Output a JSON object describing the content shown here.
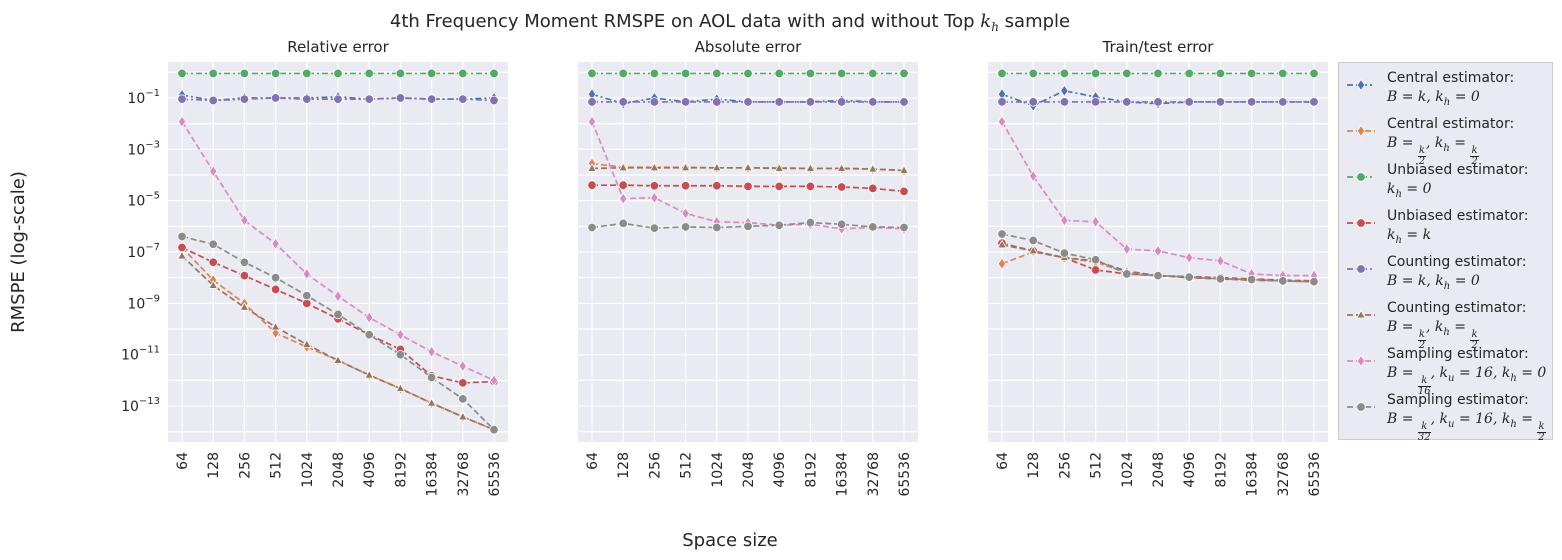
{
  "figure": {
    "suptitle": "4th Frequency Moment RMSPE on AOL data with and without Top k_h sample",
    "suptitle_prefix": "4th Frequency Moment RMSPE on AOL data with and without Top ",
    "suptitle_math_base": "k",
    "suptitle_math_sub": "h",
    "suptitle_suffix": " sample",
    "ylabel": "RMSPE (log-scale)",
    "xlabel": "Space size"
  },
  "legend": {
    "position": "right-outside",
    "entries": [
      {
        "line1": "Central estimator:",
        "line2": "B = k, k_h = 0",
        "color": "#4c72b0",
        "marker": "diamond",
        "dash": "6,3,2,3"
      },
      {
        "line1": "Central estimator:",
        "line2": "B = k/2, k_h = k/2",
        "color": "#dd8452",
        "marker": "diamond",
        "dash": "6,3"
      },
      {
        "line1": "Unbiased estimator:",
        "line2": "k_h = 0",
        "color": "#55a868",
        "marker": "circle",
        "dash": "6,3,2,3"
      },
      {
        "line1": "Unbiased estimator:",
        "line2": "k_h = k",
        "color": "#c44e52",
        "marker": "circle",
        "dash": "6,3"
      },
      {
        "line1": "Counting estimator:",
        "line2": "B = k, k_h = 0",
        "color": "#8172b3",
        "marker": "circle",
        "dash": "6,3,2,3"
      },
      {
        "line1": "Counting estimator:",
        "line2": "B = k/2, k_h = k/2",
        "color": "#937860",
        "marker": "triangle",
        "dash": "6,3"
      },
      {
        "line1": "Sampling estimator:",
        "line2": "B = k/16, k_u = 16, k_h = 0",
        "color": "#da8bc3",
        "marker": "diamond",
        "dash": "6,3"
      },
      {
        "line1": "Sampling estimator:",
        "line2": "B = k/32, k_u = 16, k_h = k/2",
        "color": "#8c8c8c",
        "marker": "circle",
        "dash": "6,3"
      }
    ]
  },
  "chart_data": [
    {
      "type": "line",
      "title": "Relative error",
      "yscale": "log",
      "ylim": [
        1e-14,
        1
      ],
      "yticks": [
        "10^-1",
        "10^-3",
        "10^-5",
        "10^-7",
        "10^-9",
        "10^-11",
        "10^-13"
      ],
      "grid": true,
      "categories": [
        "64",
        "128",
        "256",
        "512",
        "1024",
        "2048",
        "4096",
        "8192",
        "16384",
        "32768",
        "65536"
      ],
      "series": [
        {
          "name": "Central estimator: B = k, k_h = 0",
          "values": [
            0.13,
            0.08,
            0.1,
            0.1,
            0.1,
            0.11,
            0.09,
            0.1,
            0.09,
            0.09,
            0.1
          ]
        },
        {
          "name": "Central estimator: B = k/2, k_h = k/2",
          "values": [
            1.5e-07,
            8e-09,
            1e-09,
            7e-11,
            2e-11,
            6e-12,
            1.6e-12,
            4.8e-13,
            1.3e-13,
            3.8e-14,
            1.2e-14
          ]
        },
        {
          "name": "Unbiased estimator: k_h = 0",
          "values": [
            0.9,
            0.9,
            0.9,
            0.9,
            0.9,
            0.9,
            0.9,
            0.9,
            0.9,
            0.9,
            0.9
          ]
        },
        {
          "name": "Unbiased estimator: k_h = k",
          "values": [
            1.5e-07,
            4e-08,
            1.2e-08,
            3.5e-09,
            1e-09,
            2.5e-10,
            6e-11,
            1.6e-11,
            1.5e-12,
            8e-13,
            9e-13
          ]
        },
        {
          "name": "Counting estimator: B = k, k_h = 0",
          "values": [
            0.09,
            0.08,
            0.09,
            0.1,
            0.09,
            0.09,
            0.09,
            0.1,
            0.09,
            0.09,
            0.08
          ]
        },
        {
          "name": "Counting estimator: B = k/2, k_h = k/2",
          "values": [
            7e-08,
            5e-09,
            7e-10,
            1.2e-10,
            2.5e-11,
            6e-12,
            1.6e-12,
            4.8e-13,
            1.3e-13,
            3.8e-14,
            1.2e-14
          ]
        },
        {
          "name": "Sampling estimator: B = k/16, k_u = 16, k_h = 0",
          "values": [
            0.012,
            0.00014,
            1.7e-06,
            2.1e-07,
            1.4e-08,
            1.9e-09,
            2.8e-10,
            6e-11,
            1.3e-11,
            3.6e-12,
            1e-12
          ]
        },
        {
          "name": "Sampling estimator: B = k/32, k_u = 16, k_h = k/2",
          "values": [
            4e-07,
            2e-07,
            4e-08,
            1e-08,
            2e-09,
            3.7e-10,
            6e-11,
            1e-11,
            1.3e-12,
            1.9e-13,
            1.2e-14
          ]
        }
      ]
    },
    {
      "type": "line",
      "title": "Absolute error",
      "yscale": "log",
      "ylim": [
        1e-14,
        1
      ],
      "grid": true,
      "categories": [
        "64",
        "128",
        "256",
        "512",
        "1024",
        "2048",
        "4096",
        "8192",
        "16384",
        "32768",
        "65536"
      ],
      "series": [
        {
          "name": "Central estimator: B = k, k_h = 0",
          "values": [
            0.14,
            0.06,
            0.1,
            0.07,
            0.09,
            0.07,
            0.07,
            0.07,
            0.08,
            0.07,
            0.07
          ]
        },
        {
          "name": "Central estimator: B = k/2, k_h = k/2",
          "values": [
            0.00028,
            0.0002,
            0.0002,
            0.0002,
            0.00019,
            0.00019,
            0.00019,
            0.00018,
            0.00018,
            0.00017,
            0.00015
          ]
        },
        {
          "name": "Unbiased estimator: k_h = 0",
          "values": [
            0.9,
            0.9,
            0.9,
            0.9,
            0.9,
            0.9,
            0.9,
            0.9,
            0.9,
            0.9,
            0.9
          ]
        },
        {
          "name": "Unbiased estimator: k_h = k",
          "values": [
            4e-05,
            4e-05,
            3.8e-05,
            3.8e-05,
            3.8e-05,
            3.6e-05,
            3.6e-05,
            3.6e-05,
            3.4e-05,
            3e-05,
            2.3e-05
          ]
        },
        {
          "name": "Counting estimator: B = k, k_h = 0",
          "values": [
            0.07,
            0.07,
            0.07,
            0.07,
            0.07,
            0.07,
            0.07,
            0.07,
            0.07,
            0.07,
            0.07
          ]
        },
        {
          "name": "Counting estimator: B = k/2, k_h = k/2",
          "values": [
            0.00018,
            0.00019,
            0.00019,
            0.00019,
            0.00019,
            0.00019,
            0.00018,
            0.00018,
            0.00018,
            0.00017,
            0.00015
          ]
        },
        {
          "name": "Sampling estimator: B = k/16, k_u = 16, k_h = 0",
          "values": [
            0.012,
            1.2e-05,
            1.3e-05,
            3.2e-06,
            1.5e-06,
            1.4e-06,
            1.1e-06,
            1.2e-06,
            8e-07,
            9e-07,
            8e-07
          ]
        },
        {
          "name": "Sampling estimator: B = k/32, k_u = 16, k_h = k/2",
          "values": [
            9e-07,
            1.3e-06,
            8.5e-07,
            9.5e-07,
            9e-07,
            1e-06,
            1.1e-06,
            1.4e-06,
            1.2e-06,
            9.5e-07,
            9e-07
          ]
        }
      ]
    },
    {
      "type": "line",
      "title": "Train/test error",
      "yscale": "log",
      "ylim": [
        1e-14,
        1
      ],
      "grid": true,
      "categories": [
        "64",
        "128",
        "256",
        "512",
        "1024",
        "2048",
        "4096",
        "8192",
        "16384",
        "32768",
        "65536"
      ],
      "series": [
        {
          "name": "Central estimator: B = k, k_h = 0",
          "values": [
            0.14,
            0.05,
            0.19,
            0.11,
            0.07,
            0.06,
            0.07,
            0.07,
            0.07,
            0.07,
            0.07
          ]
        },
        {
          "name": "Central estimator: B = k/2, k_h = k/2",
          "values": [
            3.5e-08,
            1e-07,
            6e-08,
            4e-08,
            1.6e-08,
            1.2e-08,
            1e-08,
            9e-09,
            8e-09,
            7.5e-09,
            7e-09
          ]
        },
        {
          "name": "Unbiased estimator: k_h = 0",
          "values": [
            0.9,
            0.9,
            0.9,
            0.9,
            0.9,
            0.9,
            0.9,
            0.9,
            0.9,
            0.9,
            0.9
          ]
        },
        {
          "name": "Unbiased estimator: k_h = k",
          "values": [
            2.2e-07,
            1.1e-07,
            6e-08,
            2e-08,
            1.4e-08,
            1.2e-08,
            1.1e-08,
            1e-08,
            9e-09,
            8e-09,
            7.5e-09
          ]
        },
        {
          "name": "Counting estimator: B = k, k_h = 0",
          "values": [
            0.07,
            0.07,
            0.07,
            0.07,
            0.07,
            0.07,
            0.07,
            0.07,
            0.07,
            0.07,
            0.07
          ]
        },
        {
          "name": "Counting estimator: B = k/2, k_h = k/2",
          "values": [
            1.9e-07,
            1.1e-07,
            6e-08,
            4.5e-08,
            1.8e-08,
            1.2e-08,
            1e-08,
            9e-09,
            8e-09,
            7.5e-09,
            7e-09
          ]
        },
        {
          "name": "Sampling estimator: B = k/16, k_u = 16, k_h = 0",
          "values": [
            0.012,
            9e-05,
            1.7e-06,
            1.5e-06,
            1.3e-07,
            1.1e-07,
            6e-08,
            4.5e-08,
            1.4e-08,
            1.2e-08,
            1.2e-08
          ]
        },
        {
          "name": "Sampling estimator: B = k/32, k_u = 16, k_h = k/2",
          "values": [
            5e-07,
            2.8e-07,
            9e-08,
            5e-08,
            1.4e-08,
            1.2e-08,
            1.05e-08,
            9e-09,
            8.5e-09,
            7.5e-09,
            7e-09
          ]
        }
      ]
    }
  ]
}
